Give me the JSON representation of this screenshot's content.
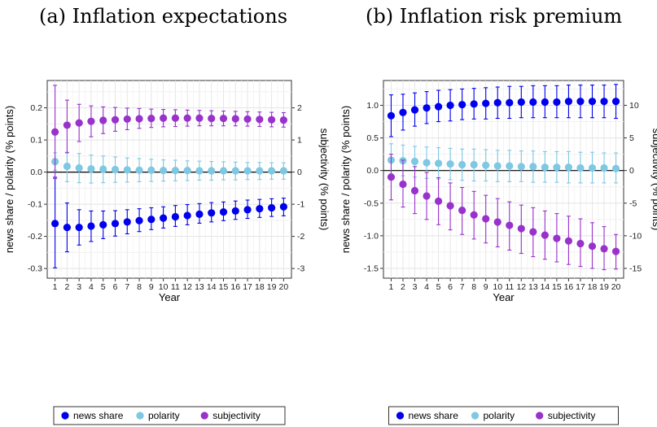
{
  "panels": [
    {
      "title": "(a) Inflation expectations"
    },
    {
      "title": "(b) Inflation risk premium"
    }
  ],
  "colors": {
    "news_share": "#0000ee",
    "polarity": "#7ec8e3",
    "subjectivity": "#9932cc"
  },
  "chart_data": [
    {
      "type": "scatter",
      "title": "(a) Inflation expectations",
      "xlabel": "Year",
      "ylabel": "news share / polarity (% points)",
      "y2label": "subjectivity (% points)",
      "x": [
        1,
        2,
        3,
        4,
        5,
        6,
        7,
        8,
        9,
        10,
        11,
        12,
        13,
        14,
        15,
        16,
        17,
        18,
        19,
        20
      ],
      "ylim": [
        -0.33,
        0.285
      ],
      "y2lim": [
        -3.3,
        2.85
      ],
      "yticks": [
        -0.3,
        -0.2,
        -0.1,
        0.0,
        0.1,
        0.2
      ],
      "yticklabels": [
        "-0.3",
        "-0.2",
        "-0.1",
        "0.0",
        "0.1",
        "0.2"
      ],
      "y2ticks": [
        -3,
        -2,
        -1,
        0,
        1,
        2
      ],
      "y2ticklabels": [
        "-3",
        "-2",
        "-1",
        "0",
        "1",
        "2"
      ],
      "grid": true,
      "legend": "bottom",
      "series": [
        {
          "name": "news share",
          "color_key": "news_share",
          "axis": "left",
          "values": [
            -0.16,
            -0.172,
            -0.172,
            -0.168,
            -0.164,
            -0.16,
            -0.155,
            -0.151,
            -0.147,
            -0.143,
            -0.139,
            -0.135,
            -0.131,
            -0.127,
            -0.124,
            -0.121,
            -0.117,
            -0.114,
            -0.111,
            -0.108
          ],
          "lower": [
            -0.298,
            -0.248,
            -0.227,
            -0.216,
            -0.207,
            -0.199,
            -0.192,
            -0.185,
            -0.179,
            -0.174,
            -0.169,
            -0.164,
            -0.159,
            -0.155,
            -0.151,
            -0.147,
            -0.144,
            -0.141,
            -0.138,
            -0.136
          ],
          "upper": [
            -0.016,
            -0.096,
            -0.117,
            -0.121,
            -0.121,
            -0.12,
            -0.117,
            -0.114,
            -0.111,
            -0.108,
            -0.104,
            -0.101,
            -0.098,
            -0.095,
            -0.093,
            -0.09,
            -0.087,
            -0.085,
            -0.083,
            -0.081
          ]
        },
        {
          "name": "polarity",
          "color_key": "polarity",
          "axis": "left",
          "values": [
            0.033,
            0.018,
            0.013,
            0.01,
            0.009,
            0.008,
            0.007,
            0.006,
            0.006,
            0.005,
            0.005,
            0.005,
            0.004,
            0.004,
            0.004,
            0.004,
            0.004,
            0.004,
            0.004,
            0.004
          ],
          "lower": [
            0.006,
            -0.03,
            -0.033,
            -0.034,
            -0.033,
            -0.032,
            -0.031,
            -0.03,
            -0.029,
            -0.028,
            -0.027,
            -0.026,
            -0.025,
            -0.025,
            -0.024,
            -0.024,
            -0.023,
            -0.023,
            -0.022,
            -0.022
          ],
          "upper": [
            0.06,
            0.062,
            0.058,
            0.053,
            0.05,
            0.047,
            0.044,
            0.042,
            0.04,
            0.038,
            0.037,
            0.035,
            0.034,
            0.033,
            0.032,
            0.031,
            0.03,
            0.03,
            0.029,
            0.029
          ]
        },
        {
          "name": "subjectivity",
          "color_key": "subjectivity",
          "axis": "right",
          "values": [
            1.25,
            1.46,
            1.53,
            1.58,
            1.61,
            1.63,
            1.65,
            1.66,
            1.67,
            1.68,
            1.68,
            1.68,
            1.68,
            1.67,
            1.67,
            1.66,
            1.65,
            1.64,
            1.63,
            1.62
          ],
          "lower": [
            -0.2,
            0.6,
            0.95,
            1.1,
            1.2,
            1.27,
            1.32,
            1.36,
            1.39,
            1.41,
            1.42,
            1.43,
            1.44,
            1.44,
            1.44,
            1.44,
            1.43,
            1.42,
            1.41,
            1.4
          ],
          "upper": [
            2.7,
            2.24,
            2.11,
            2.06,
            2.03,
            2.01,
            1.99,
            1.98,
            1.96,
            1.95,
            1.94,
            1.93,
            1.92,
            1.91,
            1.9,
            1.89,
            1.88,
            1.87,
            1.86,
            1.85
          ]
        }
      ]
    },
    {
      "type": "scatter",
      "title": "(b) Inflation risk premium",
      "xlabel": "Year",
      "ylabel": "news share / polarity (% points)",
      "y2label": "subjectivity (% points)",
      "x": [
        1,
        2,
        3,
        4,
        5,
        6,
        7,
        8,
        9,
        10,
        11,
        12,
        13,
        14,
        15,
        16,
        17,
        18,
        19,
        20
      ],
      "ylim": [
        -1.65,
        1.38
      ],
      "y2lim": [
        -16.5,
        13.8
      ],
      "yticks": [
        -1.5,
        -1.0,
        -0.5,
        0.0,
        0.5,
        1.0
      ],
      "yticklabels": [
        "-1.5",
        "-1.0",
        "-0.5",
        "0.0",
        "0.5",
        "1.0"
      ],
      "y2ticks": [
        -15,
        -10,
        -5,
        0,
        5,
        10
      ],
      "y2ticklabels": [
        "-15",
        "-10",
        "-5",
        "0",
        "5",
        "10"
      ],
      "grid": true,
      "legend": "bottom",
      "series": [
        {
          "name": "news share",
          "color_key": "news_share",
          "axis": "left",
          "values": [
            0.84,
            0.89,
            0.93,
            0.96,
            0.98,
            1.0,
            1.01,
            1.02,
            1.03,
            1.04,
            1.04,
            1.05,
            1.05,
            1.05,
            1.05,
            1.06,
            1.06,
            1.06,
            1.06,
            1.06
          ],
          "lower": [
            0.52,
            0.62,
            0.68,
            0.72,
            0.75,
            0.76,
            0.78,
            0.79,
            0.79,
            0.8,
            0.8,
            0.81,
            0.81,
            0.81,
            0.81,
            0.81,
            0.81,
            0.81,
            0.81,
            0.8
          ],
          "upper": [
            1.16,
            1.17,
            1.19,
            1.21,
            1.23,
            1.24,
            1.25,
            1.26,
            1.27,
            1.28,
            1.29,
            1.29,
            1.3,
            1.3,
            1.3,
            1.31,
            1.31,
            1.31,
            1.31,
            1.32
          ]
        },
        {
          "name": "polarity",
          "color_key": "polarity",
          "axis": "left",
          "values": [
            0.16,
            0.15,
            0.14,
            0.12,
            0.11,
            0.1,
            0.09,
            0.09,
            0.08,
            0.07,
            0.07,
            0.06,
            0.06,
            0.05,
            0.05,
            0.05,
            0.04,
            0.04,
            0.04,
            0.03
          ],
          "lower": [
            -0.05,
            -0.08,
            -0.1,
            -0.12,
            -0.13,
            -0.14,
            -0.15,
            -0.16,
            -0.16,
            -0.17,
            -0.17,
            -0.17,
            -0.18,
            -0.18,
            -0.18,
            -0.19,
            -0.19,
            -0.19,
            -0.19,
            -0.19
          ],
          "upper": [
            0.41,
            0.39,
            0.37,
            0.36,
            0.35,
            0.34,
            0.33,
            0.33,
            0.32,
            0.31,
            0.31,
            0.3,
            0.3,
            0.29,
            0.29,
            0.29,
            0.28,
            0.28,
            0.27,
            0.27
          ]
        },
        {
          "name": "subjectivity",
          "color_key": "subjectivity",
          "axis": "right",
          "values": [
            -1.0,
            -2.1,
            -3.1,
            -3.9,
            -4.7,
            -5.4,
            -6.1,
            -6.8,
            -7.4,
            -7.9,
            -8.4,
            -8.9,
            -9.4,
            -9.9,
            -10.4,
            -10.8,
            -11.2,
            -11.6,
            -12.0,
            -12.4
          ],
          "lower": [
            -4.5,
            -5.6,
            -6.6,
            -7.5,
            -8.3,
            -9.1,
            -9.8,
            -10.5,
            -11.1,
            -11.7,
            -12.2,
            -12.7,
            -13.2,
            -13.6,
            -14.0,
            -14.4,
            -14.7,
            -15.0,
            -15.2,
            -15.1
          ],
          "upper": [
            2.5,
            1.6,
            0.6,
            -0.3,
            -1.1,
            -1.9,
            -2.6,
            -3.2,
            -3.8,
            -4.3,
            -4.8,
            -5.3,
            -5.7,
            -6.2,
            -6.6,
            -7.0,
            -7.4,
            -8.0,
            -8.6,
            -9.8
          ]
        }
      ]
    }
  ]
}
